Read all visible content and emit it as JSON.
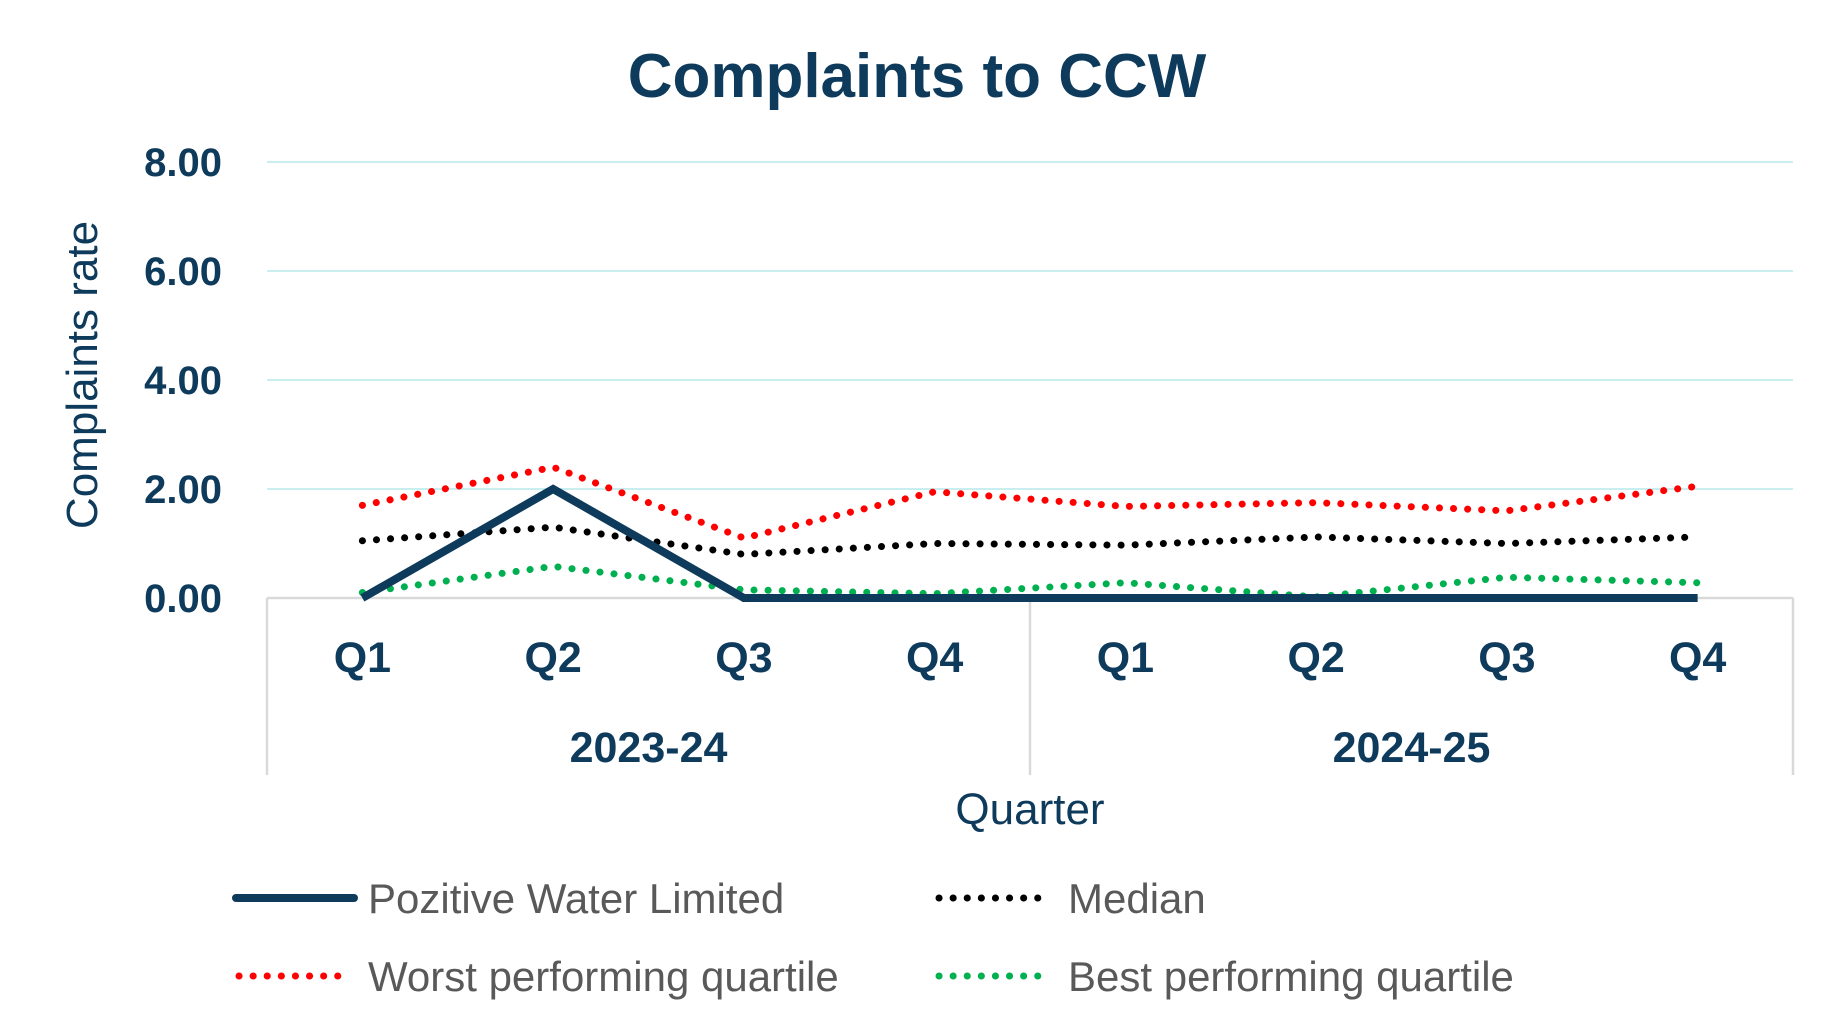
{
  "chart_data": {
    "type": "line",
    "title": "Complaints to CCW",
    "ylabel": "Complaints rate",
    "xlabel": "Quarter",
    "ylim": [
      0,
      8
    ],
    "yticks": [
      "0.00",
      "2.00",
      "4.00",
      "6.00",
      "8.00"
    ],
    "categories": [
      "Q1",
      "Q2",
      "Q3",
      "Q4",
      "Q1",
      "Q2",
      "Q3",
      "Q4"
    ],
    "groups": [
      {
        "label": "2023-24",
        "span": 4
      },
      {
        "label": "2024-25",
        "span": 4
      }
    ],
    "grid": true,
    "legend_position": "bottom",
    "series": [
      {
        "name": "Pozitive Water Limited",
        "style": "solid",
        "color": "#0e3a5c",
        "values": [
          0.0,
          2.0,
          0.0,
          0.0,
          0.0,
          0.0,
          0.0,
          0.0
        ]
      },
      {
        "name": "Median",
        "style": "dotted",
        "color": "#000000",
        "values": [
          1.05,
          1.3,
          0.8,
          1.0,
          0.97,
          1.12,
          1.0,
          1.12
        ]
      },
      {
        "name": "Worst performing quartile",
        "style": "dotted",
        "color": "#ff0000",
        "values": [
          1.7,
          2.4,
          1.1,
          1.95,
          1.68,
          1.75,
          1.6,
          2.05
        ]
      },
      {
        "name": "Best performing quartile",
        "style": "dotted",
        "color": "#00b050",
        "values": [
          0.1,
          0.58,
          0.15,
          0.08,
          0.28,
          0.02,
          0.38,
          0.28
        ]
      }
    ]
  }
}
